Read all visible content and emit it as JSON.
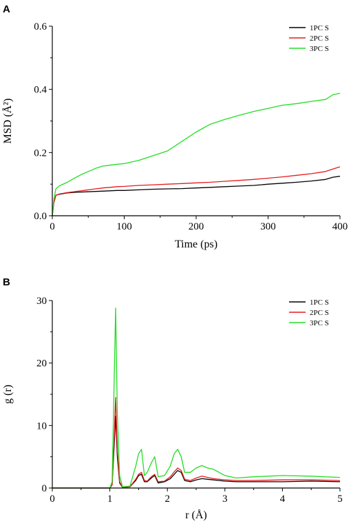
{
  "chart_data": [
    {
      "panel": "A",
      "type": "line",
      "xlabel": "Time (ps)",
      "ylabel": "MSD (Å²)",
      "xlim": [
        0,
        400
      ],
      "ylim": [
        0,
        0.6
      ],
      "xticks": [
        0,
        100,
        200,
        300,
        400
      ],
      "yticks": [
        0.0,
        0.2,
        0.4,
        0.6
      ],
      "xtick_labels": [
        "0",
        "100",
        "200",
        "300",
        "400"
      ],
      "ytick_labels": [
        "0.0",
        "0.2",
        "0.4",
        "0.6"
      ],
      "legend_position": "top-right",
      "grid": false,
      "series": [
        {
          "name": "1PC S",
          "color": "#000000",
          "x": [
            0,
            2,
            5,
            10,
            20,
            30,
            40,
            50,
            60,
            70,
            80,
            90,
            100,
            120,
            140,
            160,
            180,
            200,
            220,
            240,
            260,
            280,
            300,
            320,
            340,
            360,
            380,
            390,
            400
          ],
          "y": [
            0.0,
            0.04,
            0.065,
            0.068,
            0.072,
            0.074,
            0.075,
            0.076,
            0.077,
            0.078,
            0.079,
            0.08,
            0.08,
            0.082,
            0.084,
            0.085,
            0.086,
            0.088,
            0.09,
            0.092,
            0.094,
            0.096,
            0.1,
            0.103,
            0.106,
            0.11,
            0.115,
            0.122,
            0.125
          ]
        },
        {
          "name": "2PC S",
          "color": "#e41a1c",
          "x": [
            0,
            2,
            5,
            10,
            20,
            30,
            40,
            50,
            60,
            70,
            80,
            90,
            100,
            120,
            140,
            160,
            180,
            200,
            220,
            240,
            260,
            280,
            300,
            320,
            340,
            360,
            380,
            390,
            400
          ],
          "y": [
            0.0,
            0.04,
            0.065,
            0.069,
            0.073,
            0.076,
            0.079,
            0.082,
            0.085,
            0.088,
            0.09,
            0.092,
            0.093,
            0.096,
            0.098,
            0.1,
            0.102,
            0.104,
            0.106,
            0.109,
            0.112,
            0.115,
            0.119,
            0.123,
            0.128,
            0.133,
            0.14,
            0.148,
            0.155
          ]
        },
        {
          "name": "3PC S",
          "color": "#22dd22",
          "x": [
            0,
            2,
            5,
            10,
            20,
            30,
            40,
            50,
            60,
            70,
            80,
            90,
            100,
            120,
            140,
            160,
            180,
            200,
            220,
            240,
            260,
            280,
            300,
            320,
            340,
            360,
            380,
            390,
            400
          ],
          "y": [
            0.0,
            0.05,
            0.085,
            0.095,
            0.105,
            0.118,
            0.13,
            0.14,
            0.15,
            0.157,
            0.16,
            0.163,
            0.165,
            0.175,
            0.19,
            0.205,
            0.235,
            0.265,
            0.29,
            0.305,
            0.318,
            0.33,
            0.34,
            0.35,
            0.355,
            0.362,
            0.368,
            0.383,
            0.388
          ]
        }
      ]
    },
    {
      "panel": "B",
      "type": "line",
      "xlabel": "r (Å)",
      "ylabel": "g (r)",
      "xlim": [
        0,
        5
      ],
      "ylim": [
        0,
        30
      ],
      "xticks": [
        0,
        1,
        2,
        3,
        4,
        5
      ],
      "yticks": [
        0,
        10,
        20,
        30
      ],
      "xtick_labels": [
        "0",
        "1",
        "2",
        "3",
        "4",
        "5"
      ],
      "ytick_labels": [
        "0",
        "10",
        "20",
        "30"
      ],
      "legend_position": "top-right",
      "grid": false,
      "series": [
        {
          "name": "1PC S",
          "color": "#000000",
          "x": [
            0,
            1.0,
            1.04,
            1.07,
            1.1,
            1.13,
            1.17,
            1.22,
            1.35,
            1.45,
            1.5,
            1.55,
            1.6,
            1.65,
            1.72,
            1.78,
            1.84,
            1.95,
            2.05,
            2.12,
            2.18,
            2.24,
            2.3,
            2.4,
            2.5,
            2.6,
            2.7,
            2.8,
            2.9,
            3.0,
            3.2,
            3.5,
            4.0,
            4.5,
            5.0
          ],
          "y": [
            0,
            0,
            0.5,
            6,
            11.5,
            5,
            0.8,
            0.1,
            0.2,
            1.2,
            2.0,
            2.2,
            1.0,
            1.0,
            1.6,
            2.0,
            0.8,
            1.0,
            1.5,
            2.2,
            2.8,
            2.5,
            1.2,
            1.0,
            1.3,
            1.5,
            1.4,
            1.3,
            1.2,
            1.1,
            1.0,
            1.0,
            1.0,
            1.1,
            1.0
          ]
        },
        {
          "name": "2PC S",
          "color": "#e41a1c",
          "x": [
            0,
            1.0,
            1.04,
            1.07,
            1.1,
            1.13,
            1.17,
            1.22,
            1.35,
            1.45,
            1.5,
            1.55,
            1.6,
            1.65,
            1.72,
            1.78,
            1.84,
            1.95,
            2.05,
            2.12,
            2.18,
            2.24,
            2.3,
            2.4,
            2.5,
            2.6,
            2.7,
            2.8,
            2.9,
            3.0,
            3.2,
            3.5,
            4.0,
            4.5,
            5.0
          ],
          "y": [
            0,
            0,
            0.5,
            7,
            14.5,
            6,
            1.0,
            0.1,
            0.2,
            1.4,
            2.2,
            2.5,
            1.2,
            1.1,
            1.8,
            2.2,
            1.0,
            1.1,
            1.8,
            2.6,
            3.2,
            2.8,
            1.4,
            1.2,
            1.6,
            1.9,
            1.7,
            1.5,
            1.4,
            1.3,
            1.2,
            1.2,
            1.3,
            1.3,
            1.2
          ]
        },
        {
          "name": "3PC S",
          "color": "#22dd22",
          "x": [
            0,
            1.0,
            1.04,
            1.07,
            1.1,
            1.13,
            1.17,
            1.22,
            1.35,
            1.45,
            1.5,
            1.55,
            1.6,
            1.65,
            1.72,
            1.78,
            1.84,
            1.95,
            2.05,
            2.12,
            2.18,
            2.24,
            2.3,
            2.4,
            2.5,
            2.6,
            2.7,
            2.8,
            2.9,
            3.0,
            3.2,
            3.5,
            4.0,
            4.5,
            5.0
          ],
          "y": [
            0,
            0,
            1.0,
            15,
            28.8,
            12,
            2.0,
            0.2,
            0.3,
            3.5,
            5.5,
            6.2,
            2.0,
            2.5,
            4.0,
            5.0,
            1.8,
            2.0,
            3.5,
            5.5,
            6.2,
            5.0,
            2.5,
            2.5,
            3.2,
            3.6,
            3.2,
            3.0,
            2.5,
            2.0,
            1.6,
            1.8,
            2.0,
            1.9,
            1.7
          ]
        }
      ]
    }
  ]
}
